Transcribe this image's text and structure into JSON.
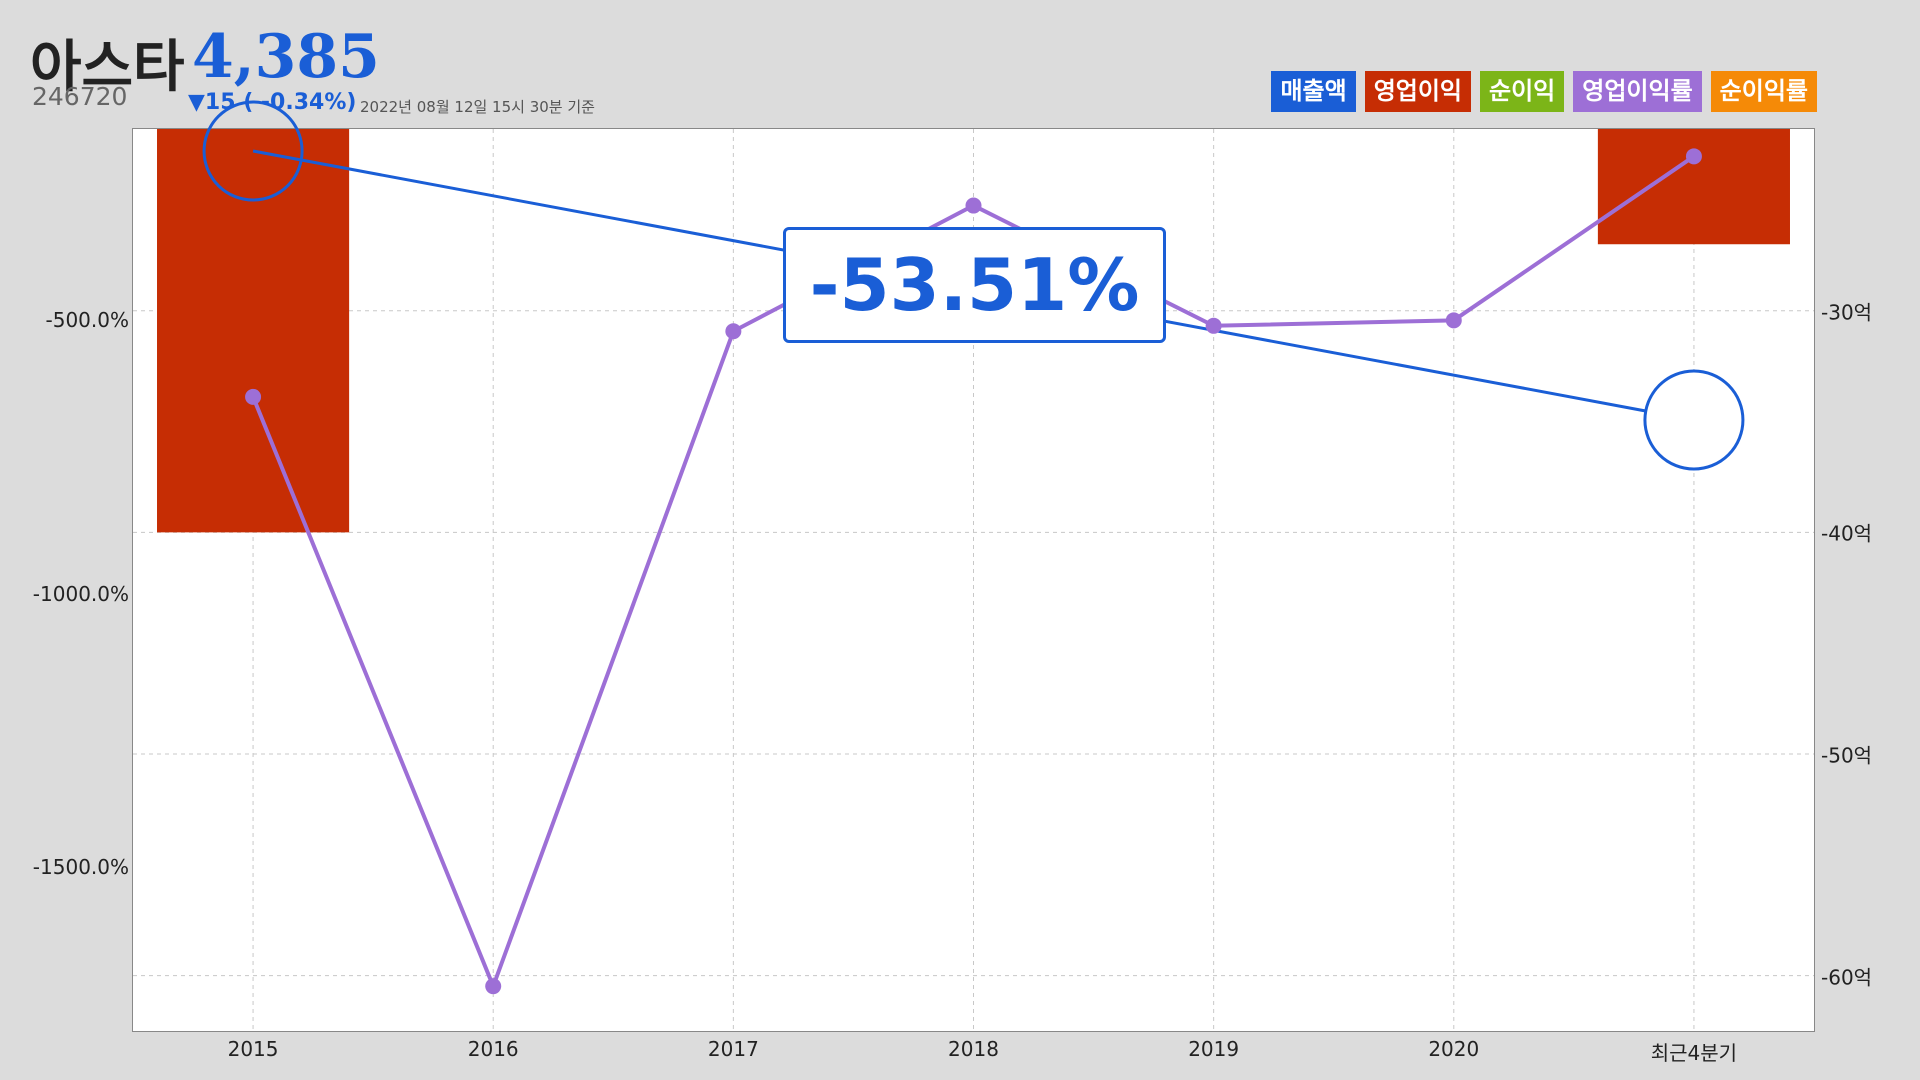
{
  "header": {
    "name": "아스타",
    "price": "4,385",
    "code": "246720",
    "change": "▼15 ( -0.34%)",
    "timestamp": "2022년 08월 12일 15시 30분 기준"
  },
  "legend": [
    {
      "label": "매출액",
      "color": "#1a5ed6"
    },
    {
      "label": "영업이익",
      "color": "#c62d04"
    },
    {
      "label": "순이익",
      "color": "#7cb518"
    },
    {
      "label": "영업이익률",
      "color": "#9d6fd6"
    },
    {
      "label": "순이익률",
      "color": "#f58a07"
    }
  ],
  "callout": {
    "text": "-53.51%",
    "color": "#1a5ed6"
  },
  "chart_data": {
    "type": "bar",
    "categories": [
      "2015",
      "2016",
      "2017",
      "2018",
      "2019",
      "2020",
      "최근4분기"
    ],
    "left_axis": {
      "ticks": [
        "-500.0%",
        "-1000.0%",
        "-1500.0%"
      ],
      "range": [
        -1800,
        -150
      ]
    },
    "right_axis": {
      "ticks": [
        "-30억",
        "-40억",
        "-50억",
        "-60억"
      ],
      "range": [
        -62.5,
        -21.8
      ]
    },
    "series": [
      {
        "name": "영업이익",
        "type": "bar",
        "axis": "right",
        "color": "#c62d04",
        "values": [
          -40,
          null,
          null,
          null,
          null,
          null,
          -27
        ]
      },
      {
        "name": "영업이익률",
        "type": "line",
        "axis": "left",
        "color": "#9d6fd6",
        "values": [
          -640,
          -1718,
          -520,
          -290,
          -510,
          -500,
          -200
        ]
      }
    ],
    "highlight_line": {
      "color": "#1a5ed6",
      "from": "2015",
      "to": "최근4분기"
    },
    "grid": true
  }
}
